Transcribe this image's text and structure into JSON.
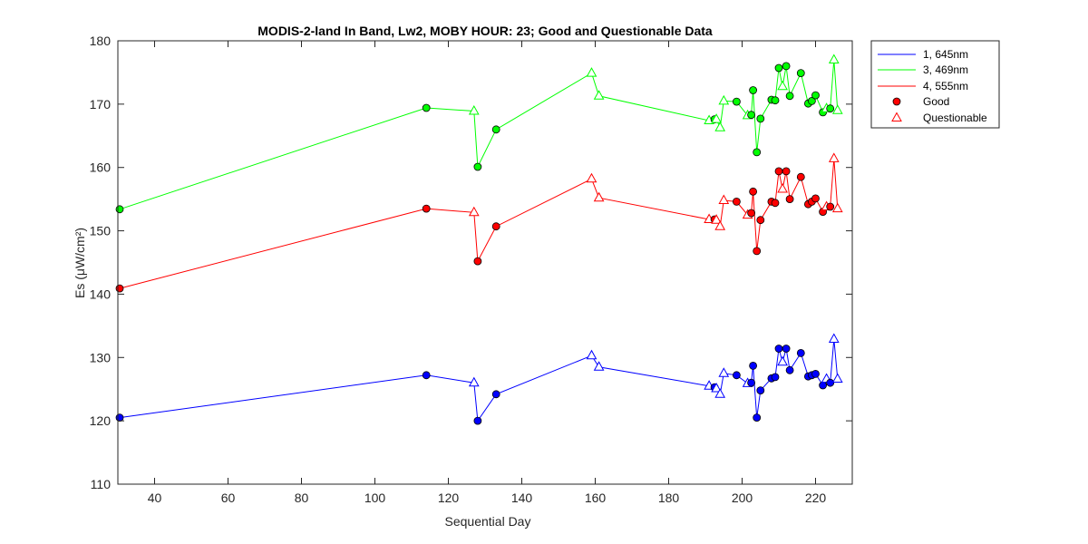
{
  "chart_data": {
    "type": "line",
    "title": "MODIS-2-land In Band,  Lw2, MOBY HOUR: 23;  Good and Questionable Data",
    "xlabel": "Sequential Day",
    "ylabel": "Es (μW/cm²)",
    "xlim": [
      30,
      230
    ],
    "ylim": [
      110,
      180
    ],
    "xticks": [
      40,
      60,
      80,
      100,
      120,
      140,
      160,
      180,
      200,
      220
    ],
    "yticks": [
      110,
      120,
      130,
      140,
      150,
      160,
      170,
      180
    ],
    "grid": false,
    "legend_position": "outside-top-right",
    "legend": {
      "entries": [
        "1, 645nm",
        "3, 469nm",
        "4, 555nm",
        "Good",
        "Questionable"
      ]
    },
    "x": [
      30.5,
      114,
      127,
      128,
      133,
      159,
      161,
      191,
      192.5,
      193,
      194,
      195,
      198.5,
      201.5,
      202.5,
      203,
      204,
      205,
      208,
      209,
      210,
      211,
      212,
      213,
      216,
      218,
      219,
      220,
      222,
      223,
      224,
      225,
      226
    ],
    "flags": [
      "G",
      "G",
      "Q",
      "G",
      "G",
      "Q",
      "Q",
      "Q",
      "G",
      "Q",
      "Q",
      "Q",
      "G",
      "Q",
      "G",
      "G",
      "G",
      "G",
      "G",
      "G",
      "G",
      "Q",
      "G",
      "G",
      "G",
      "G",
      "G",
      "G",
      "G",
      "Q",
      "G",
      "Q",
      "Q"
    ],
    "series": [
      {
        "name": "1, 645nm",
        "color": "#0000ff",
        "values": [
          120.5,
          127.2,
          126.0,
          120.0,
          124.2,
          130.3,
          128.5,
          125.5,
          125.3,
          125.1,
          124.2,
          127.5,
          127.2,
          125.9,
          126.0,
          128.7,
          120.5,
          124.8,
          126.7,
          126.9,
          131.4,
          129.3,
          131.4,
          128.0,
          130.7,
          127.0,
          127.2,
          127.4,
          125.6,
          126.6,
          126.0,
          132.9,
          126.6
        ]
      },
      {
        "name": "3, 469nm",
        "color": "#00ff00",
        "values": [
          153.4,
          169.4,
          168.9,
          160.1,
          166.0,
          174.9,
          171.3,
          167.4,
          167.6,
          167.6,
          166.3,
          170.5,
          170.4,
          168.2,
          168.3,
          172.2,
          162.4,
          167.7,
          170.7,
          170.6,
          175.7,
          172.8,
          176.0,
          171.3,
          174.9,
          170.1,
          170.5,
          171.4,
          168.7,
          169.3,
          169.3,
          177.0,
          169.0
        ]
      },
      {
        "name": "4, 555nm",
        "color": "#ff0000",
        "values": [
          140.9,
          153.5,
          152.9,
          145.2,
          150.7,
          158.2,
          155.2,
          151.8,
          151.8,
          151.7,
          150.7,
          154.8,
          154.6,
          152.5,
          152.8,
          156.2,
          146.8,
          151.7,
          154.6,
          154.4,
          159.4,
          156.6,
          159.4,
          155.0,
          158.5,
          154.2,
          154.6,
          155.1,
          153.0,
          153.8,
          153.8,
          161.4,
          153.5
        ]
      }
    ]
  }
}
